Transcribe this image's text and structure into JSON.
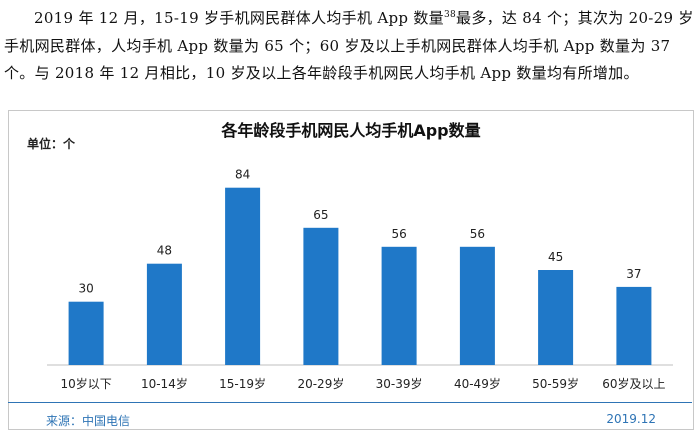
{
  "intro": {
    "part1": "2019 年 12 月，15-19 岁手机网民群体人均手机 App 数量",
    "footnote": "38",
    "part2": "最多，达 84 个；其次为 20-29 岁手机网民群体，人均手机 App 数量为 65 个；60 岁及以上手机网民群体人均手机 App 数量为 37 个。与 2018 年 12 月相比，10 岁及以上各年龄段手机网民人均手机 App 数量均有所增加。"
  },
  "chart_data": {
    "type": "bar",
    "title": "各年龄段手机网民人均手机App数量",
    "unit": "单位：个",
    "categories": [
      "10岁以下",
      "10-14岁",
      "15-19岁",
      "20-29岁",
      "30-39岁",
      "40-49岁",
      "50-59岁",
      "60岁及以上"
    ],
    "values": [
      30,
      48,
      84,
      65,
      56,
      56,
      45,
      37
    ],
    "ylim": [
      0,
      90
    ],
    "grid": false,
    "bar_color": "#1f78c8",
    "axis_color": "#bfbfbf"
  },
  "footer": {
    "source": "来源：中国电信",
    "date": "2019.12",
    "color": "#2e74b5"
  }
}
